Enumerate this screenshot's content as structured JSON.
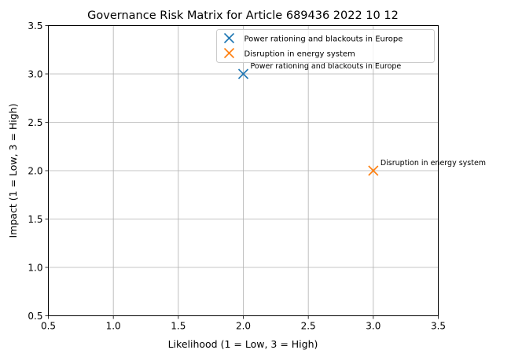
{
  "chart_data": {
    "type": "scatter",
    "title": "Governance Risk Matrix for Article 689436 2022 10 12",
    "xlabel": "Likelihood (1 = Low, 3 = High)",
    "ylabel": "Impact (1 = Low, 3 = High)",
    "xlim": [
      0.5,
      3.5
    ],
    "ylim": [
      0.5,
      3.5
    ],
    "xticks": [
      "0.5",
      "1.0",
      "1.5",
      "2.0",
      "2.5",
      "3.0",
      "3.5"
    ],
    "yticks": [
      "0.5",
      "1.0",
      "1.5",
      "2.0",
      "2.5",
      "3.0",
      "3.5"
    ],
    "grid": true,
    "legend_position": "top-right",
    "series": [
      {
        "name": "Power rationing and blackouts in Europe",
        "color": "#1f77b4",
        "marker": "x",
        "points": [
          {
            "x": 2,
            "y": 3,
            "label": "Power rationing and blackouts in Europe"
          }
        ]
      },
      {
        "name": "Disruption in energy system",
        "color": "#ff7f0e",
        "marker": "x",
        "points": [
          {
            "x": 3,
            "y": 2,
            "label": "Disruption in energy system"
          }
        ]
      }
    ]
  }
}
